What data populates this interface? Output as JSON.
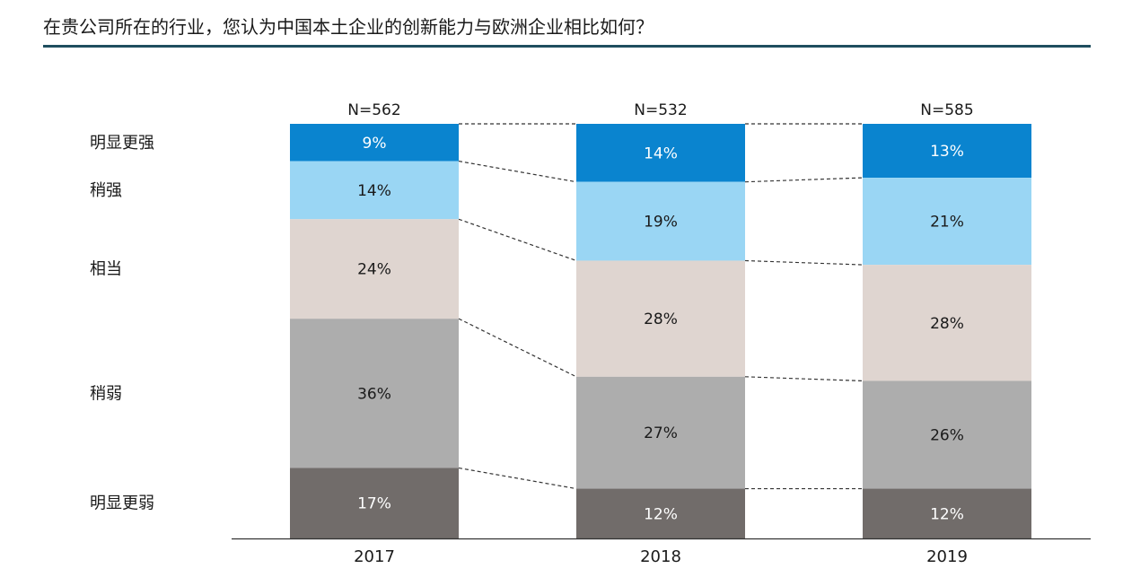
{
  "title": "在贵公司所在的行业，您认为中国本土企业的创新能力与欧洲企业相比如何？",
  "chart_data": {
    "type": "bar",
    "stacked": true,
    "percent": true,
    "categories": [
      "2017",
      "2018",
      "2019"
    ],
    "sample_sizes": [
      "N=562",
      "N=532",
      "N=585"
    ],
    "series": [
      {
        "name": "明显更强",
        "values": [
          9,
          14,
          13
        ],
        "color": "#0a84cf",
        "text_color": "#ffffff"
      },
      {
        "name": "稍强",
        "values": [
          14,
          19,
          21
        ],
        "color": "#9ad6f4",
        "text_color": "#1a1a1a"
      },
      {
        "name": "相当",
        "values": [
          24,
          28,
          28
        ],
        "color": "#dfd5d0",
        "text_color": "#1a1a1a"
      },
      {
        "name": "稍弱",
        "values": [
          36,
          27,
          26
        ],
        "color": "#adadad",
        "text_color": "#1a1a1a"
      },
      {
        "name": "明显更弱",
        "values": [
          17,
          12,
          12
        ],
        "color": "#716c6a",
        "text_color": "#ffffff"
      }
    ],
    "value_suffix": "%",
    "connectors": "dashed",
    "legend_position": "left"
  }
}
